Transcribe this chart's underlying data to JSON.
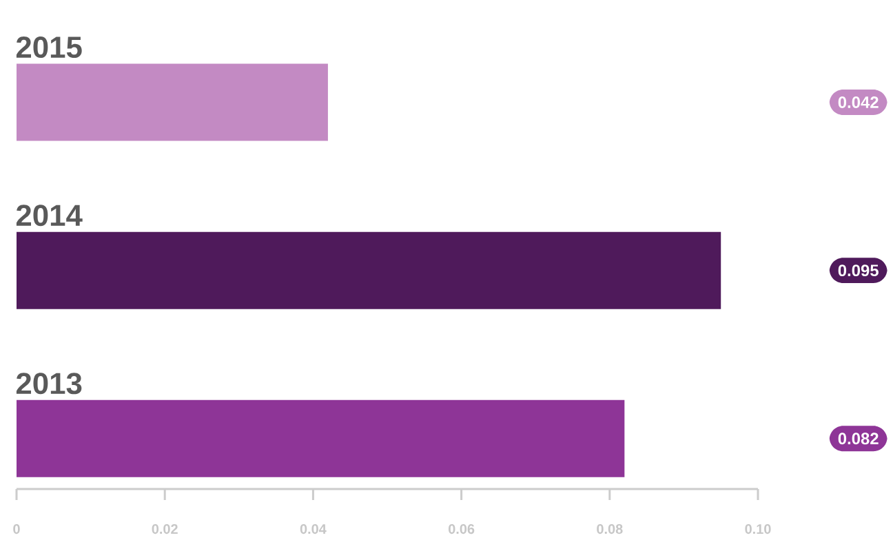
{
  "chart_data": {
    "type": "bar",
    "orientation": "horizontal",
    "categories": [
      "2015",
      "2014",
      "2013"
    ],
    "values": [
      0.042,
      0.095,
      0.082
    ],
    "colors": [
      "#c38ac3",
      "#4f1a5b",
      "#8e3597"
    ],
    "xlim": [
      0,
      0.1
    ],
    "xticks": [
      0,
      0.02,
      0.04,
      0.06,
      0.08,
      {
        "value": 0.1,
        "label": "0.10"
      }
    ],
    "data_labels": true,
    "grid": false
  }
}
